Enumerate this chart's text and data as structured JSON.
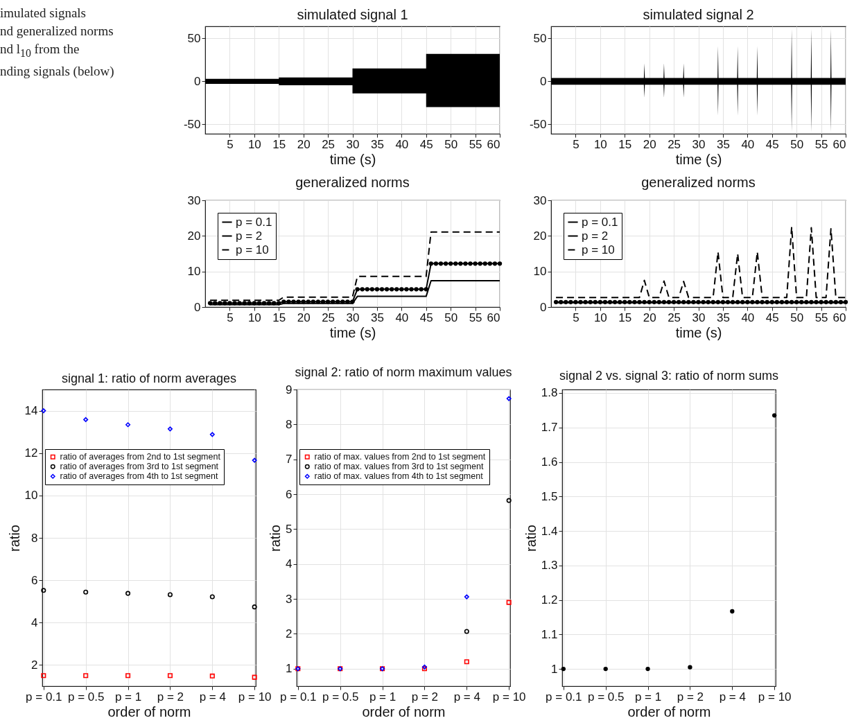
{
  "chart_data": [
    {
      "type": "line",
      "title": "simulated signal 1",
      "xlabel": "time (s)",
      "xlim": [
        0,
        60
      ],
      "xticks": [
        5,
        10,
        15,
        20,
        25,
        30,
        35,
        40,
        45,
        50,
        55,
        60
      ],
      "ylim": [
        -61,
        64
      ],
      "yticks": [
        -50,
        0,
        50
      ],
      "grid": true,
      "annotations": [
        "imulated signals",
        "nd generalized norms",
        "nd l$_{10}$ from the",
        "nding signals (below)"
      ],
      "series": [
        {
          "color": "#000000",
          "x": [
            0,
            15,
            15,
            30,
            30,
            45,
            45,
            60
          ],
          "values": [
            0,
            0,
            0,
            0,
            0,
            0,
            0,
            0
          ],
          "lower": [
            -3,
            -3,
            -4.5,
            -4.5,
            -14,
            -14,
            -30,
            -30
          ],
          "upper": [
            3,
            3,
            4.5,
            4.5,
            15,
            15,
            32,
            32
          ]
        }
      ]
    },
    {
      "type": "line",
      "title": "simulated signal 2",
      "xlabel": "time (s)",
      "xlim": [
        0,
        60
      ],
      "xticks": [
        5,
        10,
        15,
        20,
        25,
        30,
        35,
        40,
        45,
        50,
        55,
        60
      ],
      "ylim": [
        -61,
        64
      ],
      "yticks": [
        -50,
        0,
        50
      ],
      "grid": true,
      "series": [
        {
          "color": "#000000",
          "x": [
            0,
            18.9,
            19,
            19.1,
            22.9,
            23,
            23.1,
            26.9,
            27,
            27.1,
            33.9,
            34,
            34.1,
            37.9,
            38,
            38.1,
            41.9,
            42,
            42.1,
            48.9,
            49,
            49.1,
            52.9,
            53,
            53.1,
            56.9,
            57,
            57.1,
            60
          ],
          "values": [
            0,
            0,
            0,
            0,
            0,
            0,
            0,
            0,
            0,
            0,
            0,
            0,
            0,
            0,
            0,
            0,
            0,
            0,
            0,
            0,
            0,
            0,
            0,
            0,
            0,
            0,
            0,
            0,
            0
          ],
          "lower": [
            -4,
            -4,
            -19,
            -4,
            -4,
            -19,
            -4,
            -4,
            -19,
            -4,
            -4,
            -40,
            -4,
            -4,
            -40,
            -4,
            -4,
            -40,
            -4,
            -4,
            -59,
            -4,
            -4,
            -59,
            -4,
            -4,
            -59,
            -4,
            -4
          ],
          "upper": [
            4,
            4,
            21,
            4,
            4,
            21,
            4,
            4,
            21,
            4,
            4,
            41,
            4,
            4,
            41,
            4,
            4,
            41,
            4,
            4,
            61,
            4,
            4,
            61,
            4,
            4,
            61,
            4,
            4
          ]
        }
      ]
    },
    {
      "type": "line",
      "title": "generalized norms",
      "xlabel": "time (s)",
      "xlim": [
        0,
        60
      ],
      "xticks": [
        5,
        10,
        15,
        20,
        25,
        30,
        35,
        40,
        45,
        50,
        55,
        60
      ],
      "ylim": [
        0,
        30
      ],
      "yticks": [
        0,
        10,
        20,
        30
      ],
      "grid": true,
      "legend": "top left",
      "series": [
        {
          "name": "p = 0.1",
          "color": "#000000",
          "line_style": "solid",
          "marker": "none",
          "x": [
            1,
            15,
            16,
            30,
            31,
            45,
            46,
            60
          ],
          "values": [
            0.7,
            0.7,
            1.0,
            1.0,
            3.0,
            3.0,
            7.4,
            7.4
          ]
        },
        {
          "name": "p = 2",
          "color": "#000000",
          "line_style": "solid",
          "marker": "circle",
          "x": [
            1,
            2,
            3,
            4,
            5,
            6,
            7,
            8,
            9,
            10,
            11,
            12,
            13,
            14,
            15,
            16,
            17,
            18,
            19,
            20,
            21,
            22,
            23,
            24,
            25,
            26,
            27,
            28,
            29,
            30,
            31,
            32,
            33,
            34,
            35,
            36,
            37,
            38,
            39,
            40,
            41,
            42,
            43,
            44,
            45,
            46,
            47,
            48,
            49,
            50,
            51,
            52,
            53,
            54,
            55,
            56,
            57,
            58,
            59,
            60
          ],
          "values": [
            1.1,
            1.1,
            1.1,
            1.1,
            1.1,
            1.1,
            1.1,
            1.1,
            1.1,
            1.1,
            1.1,
            1.1,
            1.1,
            1.1,
            1.1,
            1.5,
            1.5,
            1.5,
            1.5,
            1.5,
            1.5,
            1.5,
            1.5,
            1.5,
            1.5,
            1.5,
            1.5,
            1.5,
            1.5,
            1.5,
            5.0,
            5.0,
            5.0,
            5.0,
            5.0,
            5.0,
            5.0,
            5.0,
            5.0,
            5.0,
            5.0,
            5.0,
            5.0,
            5.0,
            5.0,
            12.2,
            12.2,
            12.2,
            12.2,
            12.2,
            12.2,
            12.2,
            12.2,
            12.2,
            12.2,
            12.2,
            12.2,
            12.2,
            12.2,
            12.2
          ]
        },
        {
          "name": "p = 10",
          "color": "#000000",
          "line_style": "dashed",
          "marker": "none",
          "x": [
            1,
            15,
            16,
            30,
            31,
            45,
            46,
            60
          ],
          "values": [
            1.9,
            1.9,
            2.8,
            2.8,
            8.6,
            8.6,
            21.1,
            21.1
          ]
        }
      ]
    },
    {
      "type": "line",
      "title": "generalized norms",
      "xlabel": "time (s)",
      "xlim": [
        0,
        60
      ],
      "xticks": [
        5,
        10,
        15,
        20,
        25,
        30,
        35,
        40,
        45,
        50,
        55,
        60
      ],
      "ylim": [
        0,
        30
      ],
      "yticks": [
        0,
        10,
        20,
        30
      ],
      "grid": true,
      "legend": "top left",
      "series": [
        {
          "name": "p = 0.1",
          "color": "#000000",
          "line_style": "solid",
          "marker": "none",
          "x": [
            1,
            60
          ],
          "values": [
            1.2,
            1.2
          ]
        },
        {
          "name": "p = 2",
          "color": "#000000",
          "line_style": "solid",
          "marker": "circle",
          "x": [
            1,
            2,
            3,
            4,
            5,
            6,
            7,
            8,
            9,
            10,
            11,
            12,
            13,
            14,
            15,
            16,
            17,
            18,
            19,
            20,
            21,
            22,
            23,
            24,
            25,
            26,
            27,
            28,
            29,
            30,
            31,
            32,
            33,
            34,
            35,
            36,
            37,
            38,
            39,
            40,
            41,
            42,
            43,
            44,
            45,
            46,
            47,
            48,
            49,
            50,
            51,
            52,
            53,
            54,
            55,
            56,
            57,
            58,
            59,
            60
          ],
          "values": [
            1.4,
            1.4,
            1.4,
            1.4,
            1.4,
            1.4,
            1.4,
            1.4,
            1.4,
            1.4,
            1.4,
            1.4,
            1.4,
            1.4,
            1.4,
            1.4,
            1.4,
            1.4,
            1.4,
            1.4,
            1.4,
            1.4,
            1.4,
            1.4,
            1.4,
            1.4,
            1.4,
            1.4,
            1.4,
            1.4,
            1.4,
            1.4,
            1.4,
            1.4,
            1.4,
            1.4,
            1.4,
            1.4,
            1.4,
            1.4,
            1.4,
            1.4,
            1.4,
            1.4,
            1.4,
            1.4,
            1.4,
            1.4,
            1.4,
            1.4,
            1.4,
            1.4,
            1.4,
            1.4,
            1.4,
            1.4,
            1.4,
            1.4,
            1.4,
            1.4
          ]
        },
        {
          "name": "p = 10",
          "color": "#000000",
          "line_style": "dashed",
          "marker": "none",
          "x": [
            1,
            18,
            19,
            20,
            22,
            23,
            24,
            26,
            27,
            28,
            33,
            34,
            35,
            37,
            38,
            39,
            41,
            42,
            43,
            48,
            49,
            50,
            52,
            53,
            54,
            56,
            57,
            58,
            60
          ],
          "values": [
            2.7,
            2.7,
            7.5,
            2.7,
            2.7,
            7.3,
            2.7,
            2.7,
            7.2,
            2.7,
            2.7,
            15.5,
            2.7,
            2.7,
            15,
            2.7,
            2.7,
            15.5,
            2.7,
            2.7,
            22.5,
            2.7,
            2.7,
            22.3,
            2.7,
            2.7,
            22,
            2.7,
            2.7
          ]
        }
      ]
    },
    {
      "type": "scatter",
      "title": "signal 1: ratio of norm averages",
      "xlabel": "order of norm",
      "ylabel": "ratio",
      "categories": [
        "p = 0.1",
        "p = 0.5",
        "p = 1",
        "p = 2",
        "p = 4",
        "p = 10"
      ],
      "ylim": [
        1,
        15
      ],
      "yticks": [
        2,
        4,
        6,
        8,
        10,
        12,
        14
      ],
      "grid": true,
      "legend": "top",
      "series": [
        {
          "name": "ratio of averages from 2nd to 1st segment",
          "color": "#ff0000",
          "marker": "square",
          "values": [
            1.5,
            1.5,
            1.5,
            1.5,
            1.48,
            1.42
          ]
        },
        {
          "name": "ratio of averages from 3rd to 1st segment",
          "color": "#000000",
          "marker": "circle",
          "values": [
            5.52,
            5.44,
            5.38,
            5.32,
            5.22,
            4.74
          ]
        },
        {
          "name": "ratio of averages from 4th to 1st segment",
          "color": "#0000ff",
          "marker": "diamond",
          "values": [
            14,
            13.58,
            13.34,
            13.14,
            12.88,
            11.66
          ]
        }
      ]
    },
    {
      "type": "scatter",
      "title": "signal 2: ratio of norm maximum values",
      "xlabel": "order of norm",
      "ylabel": "ratio",
      "categories": [
        "p = 0.1",
        "p = 0.5",
        "p = 1",
        "p = 2",
        "p = 4",
        "p = 10"
      ],
      "ylim": [
        0.5,
        9
      ],
      "yticks": [
        1,
        2,
        3,
        4,
        5,
        6,
        7,
        8,
        9
      ],
      "grid": true,
      "legend": "top",
      "series": [
        {
          "name": "ratio of max. values from 2nd to 1st segment",
          "color": "#ff0000",
          "marker": "square",
          "values": [
            1,
            1,
            1,
            1,
            1.2,
            2.9
          ]
        },
        {
          "name": "ratio of max. values from 3rd to 1st segment",
          "color": "#000000",
          "marker": "circle",
          "values": [
            null,
            null,
            null,
            null,
            2.07,
            5.82
          ]
        },
        {
          "name": "ratio of max. values from 4th to 1st segment",
          "color": "#0000ff",
          "marker": "diamond",
          "values": [
            1,
            1,
            1,
            1.05,
            3.06,
            8.74
          ]
        }
      ]
    },
    {
      "type": "scatter",
      "title": "signal 2 vs. signal 3: ratio of norm sums",
      "xlabel": "order of norm",
      "ylabel": "ratio",
      "categories": [
        "p = 0.1",
        "p = 0.5",
        "p = 1",
        "p = 2",
        "p = 4",
        "p = 10"
      ],
      "ylim": [
        0.95,
        1.81
      ],
      "yticks": [
        1,
        1.1,
        1.2,
        1.3,
        1.4,
        1.5,
        1.6,
        1.7,
        1.8
      ],
      "grid": true,
      "series": [
        {
          "color": "#000000",
          "marker": "circle",
          "values": [
            1,
            1,
            1,
            1.005,
            1.167,
            1.735
          ]
        }
      ]
    }
  ]
}
